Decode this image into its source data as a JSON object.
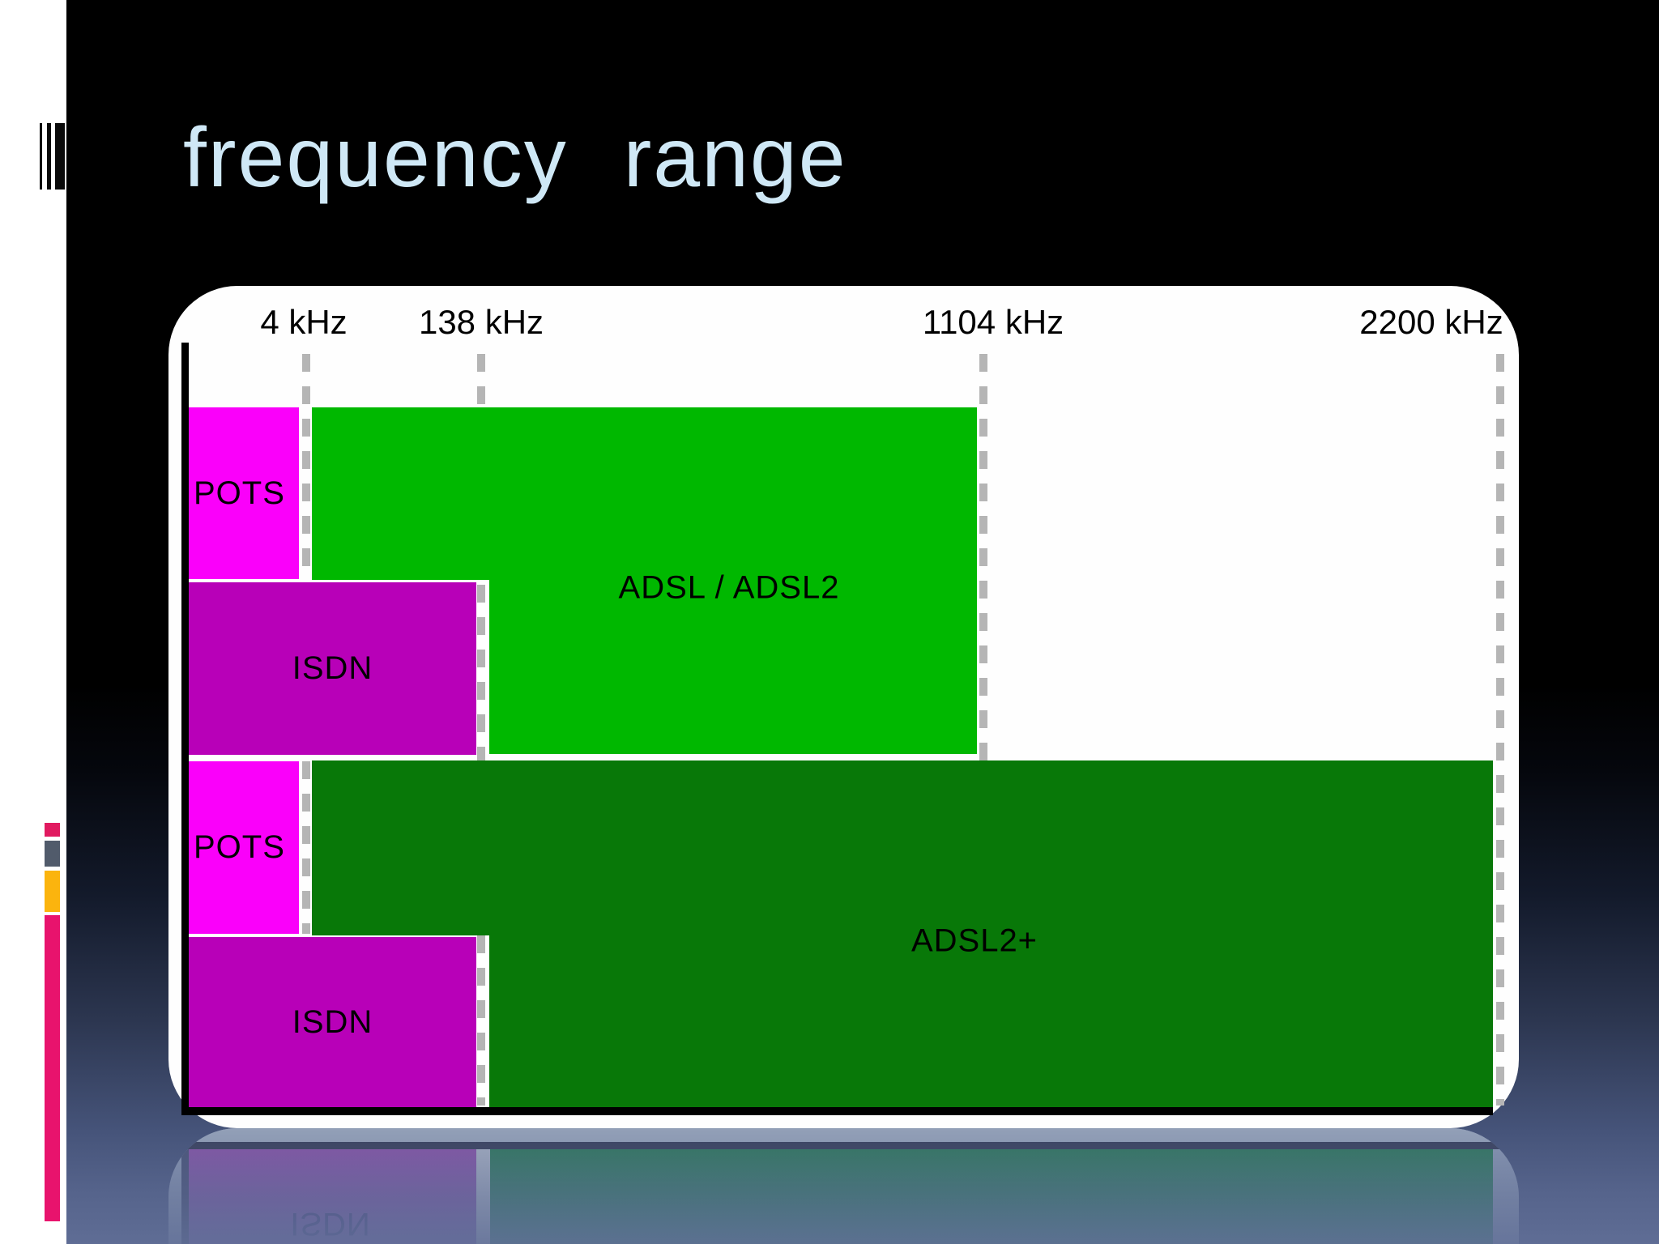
{
  "title": "frequency range",
  "freq_axis": {
    "labels": [
      {
        "text": "4 kHz"
      },
      {
        "text": "138 kHz"
      },
      {
        "text": "1104 kHz"
      },
      {
        "text": "2200 kHz"
      }
    ]
  },
  "bands": {
    "row1": {
      "pots": "POTS",
      "isdn": "ISDN",
      "adsl": "ADSL / ADSL2"
    },
    "row2": {
      "pots": "POTS",
      "isdn": "ISDN",
      "adsl2plus": "ADSL2+"
    }
  },
  "reflection": {
    "isdn": "ISDN"
  },
  "colors": {
    "title": "#cfe8f6",
    "pots": "#fa00fa",
    "isdn": "#b800b8",
    "adsl": "#00b800",
    "adsl2plus": "#087808",
    "dashed_line": "#b5b5b5",
    "axis": "#000000",
    "card": "#fefefe",
    "background_top": "#000000",
    "background_bottom": "#5f6d95",
    "sidebar": "#ffffff",
    "barcode": "#0a0a0a",
    "accent_pink_small": "#e11a60",
    "accent_slate": "#515b6b",
    "accent_amber": "#fbb40e",
    "accent_pink_tall": "#e8136d"
  }
}
